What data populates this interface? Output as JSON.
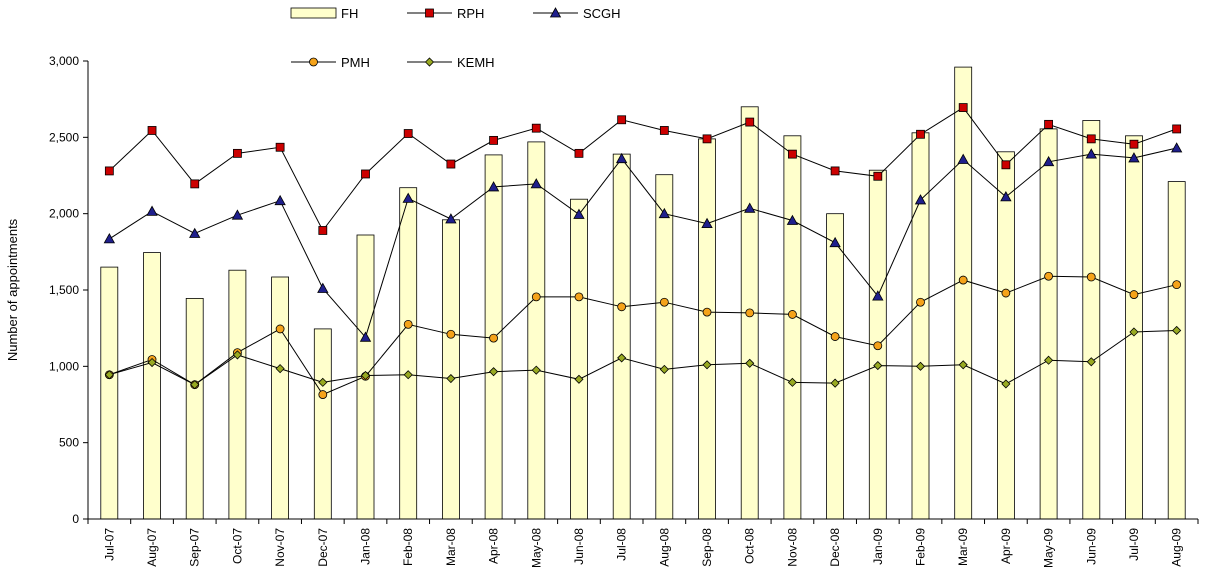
{
  "chart_data": {
    "type": "bar",
    "categories": [
      "Jul-07",
      "Aug-07",
      "Sep-07",
      "Oct-07",
      "Nov-07",
      "Dec-07",
      "Jan-08",
      "Feb-08",
      "Mar-08",
      "Apr-08",
      "May-08",
      "Jun-08",
      "Jul-08",
      "Aug-08",
      "Sep-08",
      "Oct-08",
      "Nov-08",
      "Dec-08",
      "Jan-09",
      "Feb-09",
      "Mar-09",
      "Apr-09",
      "May-09",
      "Jun-09",
      "Jul-09",
      "Aug-09"
    ],
    "ylabel": "Number of appointments",
    "ylim": [
      0,
      3000
    ],
    "yticks": [
      0,
      500,
      1000,
      1500,
      2000,
      2500,
      3000
    ],
    "ytick_labels": [
      "0",
      "500",
      "1,000",
      "1,500",
      "2,000",
      "2,500",
      "3,000"
    ],
    "grid": false,
    "legend_position": "top",
    "series": [
      {
        "name": "FH",
        "kind": "bar",
        "color": "#FFFFCC",
        "stroke": "#000000",
        "values": [
          1650,
          1745,
          1445,
          1630,
          1585,
          1245,
          1860,
          2170,
          1960,
          2385,
          2470,
          2095,
          2390,
          2255,
          2490,
          2700,
          2510,
          2000,
          2285,
          2530,
          2960,
          2405,
          2555,
          2610,
          2510,
          2210
        ]
      },
      {
        "name": "RPH",
        "kind": "line",
        "marker": "square",
        "color": "#CC0000",
        "values": [
          2280,
          2545,
          2195,
          2395,
          2435,
          1890,
          2260,
          2525,
          2325,
          2480,
          2560,
          2395,
          2615,
          2545,
          2490,
          2600,
          2390,
          2280,
          2245,
          2520,
          2695,
          2320,
          2585,
          2490,
          2455,
          2555
        ]
      },
      {
        "name": "SCGH",
        "kind": "line",
        "marker": "triangle",
        "color": "#1F1F8C",
        "values": [
          1835,
          2015,
          1870,
          1990,
          2085,
          1510,
          1190,
          2100,
          1965,
          2175,
          2195,
          1995,
          2360,
          2000,
          1935,
          2035,
          1955,
          1810,
          1460,
          2090,
          2355,
          2110,
          2340,
          2390,
          2365,
          2430
        ]
      },
      {
        "name": "PMH",
        "kind": "line",
        "marker": "circle",
        "color": "#F5A31A",
        "values": [
          945,
          1045,
          880,
          1090,
          1245,
          815,
          935,
          1275,
          1210,
          1185,
          1455,
          1455,
          1390,
          1420,
          1355,
          1350,
          1340,
          1195,
          1135,
          1420,
          1565,
          1480,
          1590,
          1585,
          1470,
          1535
        ]
      },
      {
        "name": "KEMH",
        "kind": "line",
        "marker": "diamond",
        "color": "#99AA22",
        "values": [
          945,
          1025,
          880,
          1075,
          985,
          895,
          940,
          945,
          920,
          965,
          975,
          915,
          1055,
          980,
          1010,
          1020,
          895,
          890,
          1005,
          1000,
          1010,
          885,
          1040,
          1030,
          1225,
          1235
        ]
      }
    ]
  }
}
